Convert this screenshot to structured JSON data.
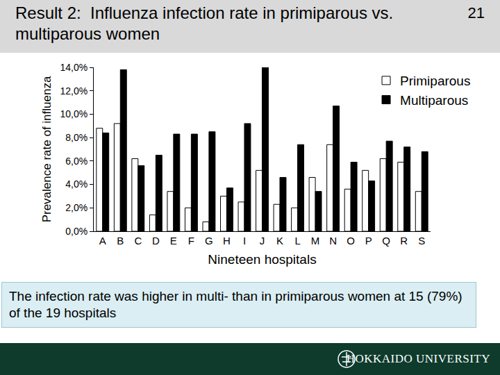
{
  "slide": {
    "title": "Result 2:  Influenza infection rate in primiparous vs. multiparous women",
    "page_number": "21",
    "caption": "The infection rate was higher in multi- than in primiparous women at 15 (79%) of the 19 hospitals",
    "footer": "HOKKAIDO UNIVERSITY"
  },
  "chart_data": {
    "type": "bar",
    "x_label": "Nineteen hospitals",
    "y_label": "Prevalence rate of influenza",
    "categories": [
      "A",
      "B",
      "C",
      "D",
      "E",
      "F",
      "G",
      "H",
      "I",
      "J",
      "K",
      "L",
      "M",
      "N",
      "O",
      "P",
      "Q",
      "R",
      "S"
    ],
    "series": [
      {
        "name": "Primiparous",
        "color": "#ffffff",
        "values": [
          8.8,
          9.2,
          6.2,
          1.4,
          3.4,
          2.0,
          0.8,
          3.0,
          2.5,
          5.2,
          2.3,
          2.0,
          4.6,
          7.4,
          3.6,
          5.2,
          6.2,
          5.9,
          3.4
        ]
      },
      {
        "name": "Multiparous",
        "color": "#000000",
        "values": [
          8.4,
          13.8,
          5.6,
          6.5,
          8.3,
          8.3,
          8.5,
          3.7,
          9.2,
          14.0,
          4.6,
          7.4,
          3.4,
          10.7,
          5.9,
          4.3,
          7.7,
          7.2,
          6.8
        ]
      }
    ],
    "ylim": [
      0,
      14
    ],
    "yticks": [
      {
        "value": 0,
        "label": "0,0%"
      },
      {
        "value": 2,
        "label": "2,0%"
      },
      {
        "value": 4,
        "label": "4,0%"
      },
      {
        "value": 6,
        "label": "6,0%"
      },
      {
        "value": 8,
        "label": "8,0%"
      },
      {
        "value": 10,
        "label": "10,0%"
      },
      {
        "value": 12,
        "label": "12,0%"
      },
      {
        "value": 14,
        "label": "14,0%"
      }
    ],
    "legend": "upper right",
    "grid": false
  }
}
